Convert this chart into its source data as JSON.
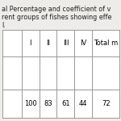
{
  "title_line1": "al Percentage and coefficient of v",
  "title_line2": "rent groups of fishes showing effe",
  "title_line3": "l.",
  "headers": [
    "",
    "I",
    "II",
    "III",
    "IV",
    "Total m"
  ],
  "row1": [
    "",
    "",
    "",
    "",
    "",
    ""
  ],
  "row2": [
    "",
    "100",
    "83",
    "61",
    "44",
    "72"
  ],
  "bg_color": "#eeece8",
  "table_bg": "#ffffff",
  "text_color": "#000000",
  "title_fontsize": 5.8,
  "cell_fontsize": 6.0,
  "title_color": "#222222"
}
